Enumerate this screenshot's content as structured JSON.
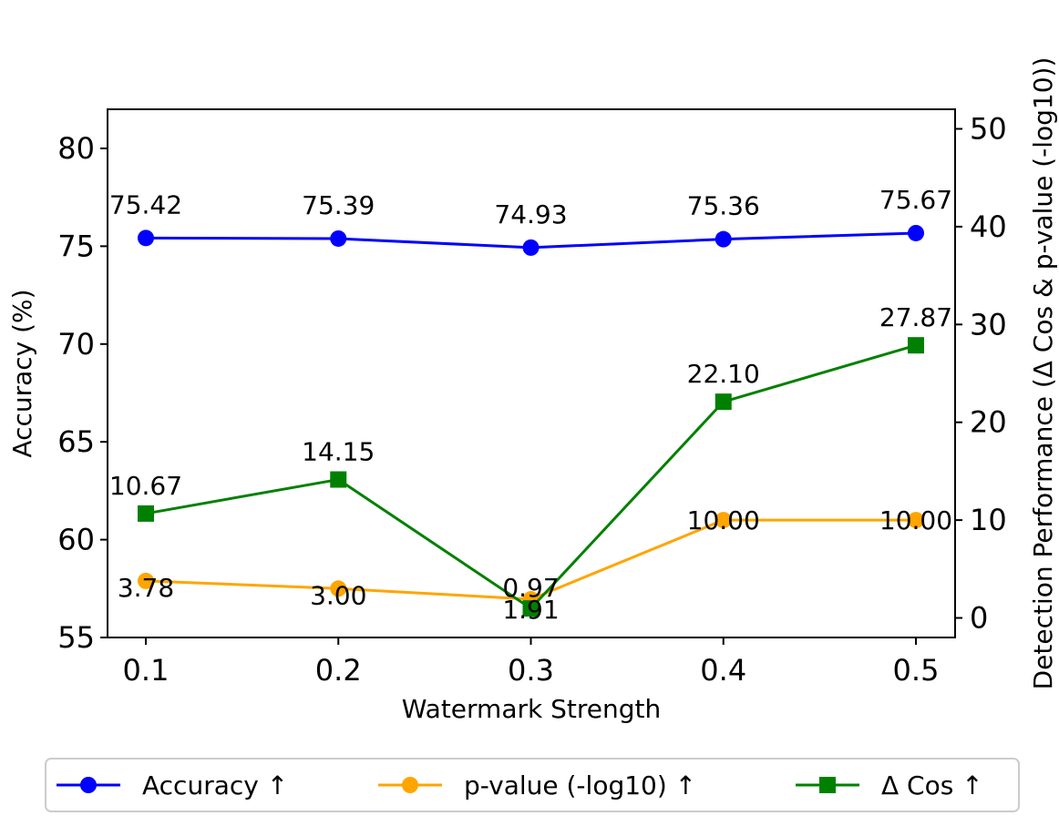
{
  "chart_data": {
    "type": "line",
    "x": [
      0.1,
      0.2,
      0.3,
      0.4,
      0.5
    ],
    "x_tick_labels": [
      "0.1",
      "0.2",
      "0.3",
      "0.4",
      "0.5"
    ],
    "xlabel": "Watermark Strength",
    "ylabel_left": "Accuracy (%)",
    "ylabel_right": "Detection Performance (Δ Cos & p-value (-log10))",
    "ylim_left": [
      55,
      82
    ],
    "ylim_right": [
      -2,
      52
    ],
    "yticks_left": [
      "55",
      "60",
      "65",
      "70",
      "75",
      "80"
    ],
    "yticks_right": [
      "0",
      "10",
      "20",
      "30",
      "40",
      "50"
    ],
    "grid": false,
    "legend_placement": "bottom",
    "series": [
      {
        "name": "Accuracy ↑",
        "axis": "left",
        "marker": "circle",
        "color": "#0000ff",
        "values": [
          75.42,
          75.39,
          74.93,
          75.36,
          75.67
        ],
        "labels": [
          "75.42",
          "75.39",
          "74.93",
          "75.36",
          "75.67"
        ]
      },
      {
        "name": "p-value (-log10) ↑",
        "axis": "right",
        "marker": "circle",
        "color": "#ffa500",
        "values": [
          3.78,
          3.0,
          1.91,
          10.0,
          10.0
        ],
        "labels": [
          "3.78",
          "3.00",
          "1.91",
          "10.00",
          "10.00"
        ]
      },
      {
        "name": "Δ Cos ↑",
        "axis": "right",
        "marker": "square",
        "color": "#008000",
        "values": [
          10.67,
          14.15,
          0.97,
          22.1,
          27.87
        ],
        "labels": [
          "10.67",
          "14.15",
          "0.97",
          "22.10",
          "27.87"
        ]
      }
    ]
  }
}
